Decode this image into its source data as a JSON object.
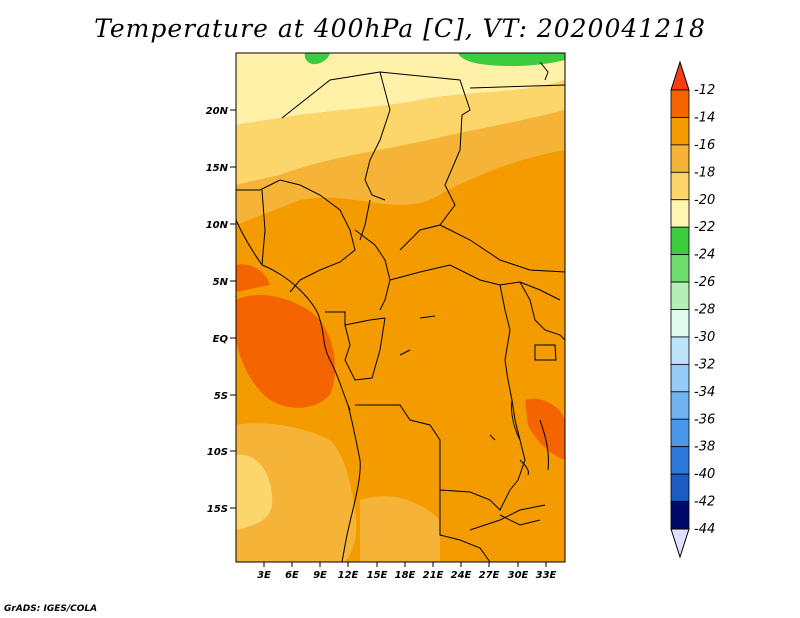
{
  "title": "Temperature at 400hPa [C], VT: 2020041218",
  "credit": "GrADS: IGES/COLA",
  "map": {
    "lat_labels": [
      "20N",
      "15N",
      "10N",
      "5N",
      "EQ",
      "5S",
      "10S",
      "15S"
    ],
    "lon_labels": [
      "3E",
      "6E",
      "9E",
      "12E",
      "15E",
      "18E",
      "21E",
      "24E",
      "27E",
      "30E",
      "33E"
    ],
    "lat_range": [
      -20,
      25
    ],
    "lon_range": [
      0,
      35
    ],
    "fill_colors": {
      "cold_band": "#f0e68c",
      "warm_band": "#f5a623",
      "main": "#f49b00",
      "hot": "#f46400",
      "green": "#3dcc3d"
    }
  },
  "colorbar": {
    "levels": [
      "-12",
      "-14",
      "-16",
      "-18",
      "-20",
      "-22",
      "-24",
      "-26",
      "-28",
      "-30",
      "-32",
      "-34",
      "-36",
      "-38",
      "-40",
      "-42",
      "-44"
    ],
    "colors": [
      "#fa3c14",
      "#f46400",
      "#f49b00",
      "#f5b437",
      "#fcd56b",
      "#fff5b0",
      "#3dcc3d",
      "#6ddc6d",
      "#b5efb5",
      "#e0fbf0",
      "#bbe3fa",
      "#95ccf5",
      "#6fb2ef",
      "#4b96e8",
      "#2d78d8",
      "#1a5cc2",
      "#0a3596",
      "#000a68",
      "#e1e1ff"
    ],
    "top_arrow_color": "#fa3c14",
    "bottom_arrow_color": "#e1e1ff"
  }
}
